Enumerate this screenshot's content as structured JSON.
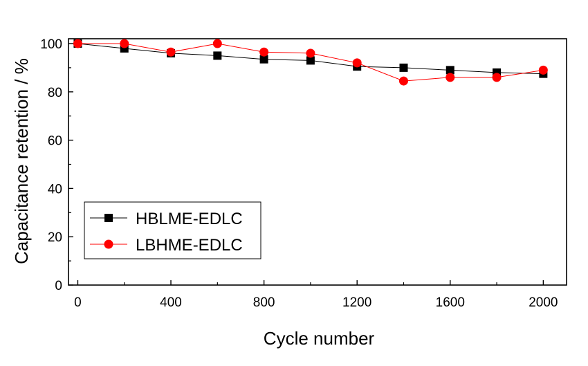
{
  "chart_data": {
    "type": "line",
    "title": "",
    "xlabel": "Cycle number",
    "ylabel": "Capacitance retention / %",
    "xlim": [
      -40,
      2100
    ],
    "ylim": [
      0,
      102
    ],
    "x_ticks": [
      0,
      400,
      800,
      1200,
      1600,
      2000
    ],
    "y_ticks": [
      0,
      20,
      40,
      60,
      80,
      100
    ],
    "grid": false,
    "legend_position": "bottom-left",
    "series": [
      {
        "name": "HBLME-EDLC",
        "marker": "square",
        "color": "#000000",
        "x": [
          0,
          200,
          400,
          600,
          800,
          1000,
          1200,
          1400,
          1600,
          1800,
          2000
        ],
        "y": [
          100,
          98,
          96,
          95,
          93.5,
          93,
          90.5,
          90,
          89,
          88,
          87.5
        ]
      },
      {
        "name": "LBHME-EDLC",
        "marker": "circle",
        "color": "#ff0000",
        "x": [
          0,
          200,
          400,
          600,
          800,
          1000,
          1200,
          1400,
          1600,
          1800,
          2000
        ],
        "y": [
          100,
          100,
          96.5,
          100,
          96.5,
          96,
          92,
          84.5,
          86,
          86,
          89
        ]
      }
    ]
  }
}
